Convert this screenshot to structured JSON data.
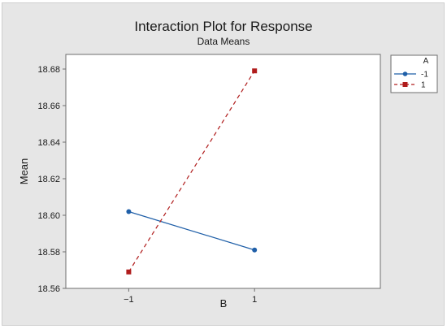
{
  "chart_data": {
    "type": "line",
    "title": "Interaction Plot for Response",
    "subtitle": "Data Means",
    "xlabel": "B",
    "ylabel": "Mean",
    "categories": [
      "−1",
      "1"
    ],
    "x": [
      -1,
      1
    ],
    "xlim": [
      -2,
      3
    ],
    "ylim": [
      18.56,
      18.688
    ],
    "yticks": [
      "18.56",
      "18.58",
      "18.60",
      "18.62",
      "18.64",
      "18.66",
      "18.68"
    ],
    "grid": false,
    "legend": {
      "title": "A",
      "placement": "right",
      "entries": [
        "-1",
        "1"
      ]
    },
    "series": [
      {
        "name": "-1",
        "values": [
          18.602,
          18.581
        ],
        "color": "#1f5fa8",
        "marker": "circle",
        "line": "solid"
      },
      {
        "name": "1",
        "values": [
          18.569,
          18.679
        ],
        "color": "#b01c1c",
        "marker": "square",
        "line": "dashed"
      }
    ]
  }
}
